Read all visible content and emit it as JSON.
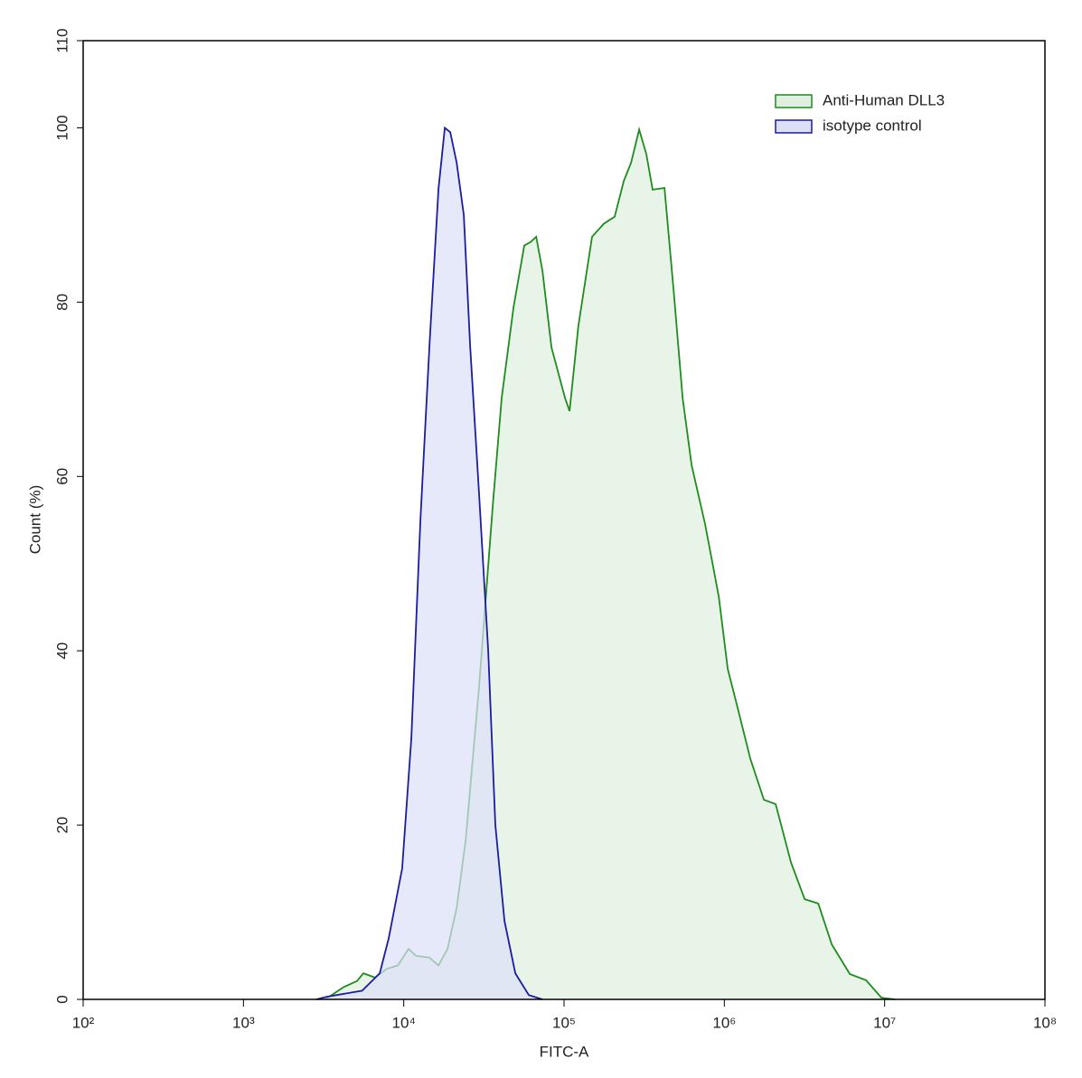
{
  "chart_data": {
    "type": "histogram-overlay",
    "xlabel": "FITC-A",
    "ylabel": "Count  (%)",
    "xscale": "log",
    "xlim": [
      100,
      100000000
    ],
    "ylim": [
      0,
      110
    ],
    "xticks": [
      {
        "value": 100,
        "label": "10²"
      },
      {
        "value": 1000,
        "label": "10³"
      },
      {
        "value": 10000,
        "label": "10⁴"
      },
      {
        "value": 100000,
        "label": "10⁵"
      },
      {
        "value": 1000000,
        "label": "10⁶"
      },
      {
        "value": 10000000,
        "label": "10⁷"
      },
      {
        "value": 100000000,
        "label": "10⁸"
      }
    ],
    "yticks": [
      0,
      20,
      40,
      60,
      80,
      100,
      110
    ],
    "legend": "upper right",
    "series": [
      {
        "name": "Anti-Human DLL3",
        "color": "#1e8c1e",
        "fill": "#dff0df",
        "x": [
          3240,
          4200,
          5110,
          5600,
          6610,
          7850,
          9180,
          10720,
          11900,
          14460,
          16480,
          18750,
          21380,
          24330,
          29520,
          35900,
          40800,
          48400,
          56500,
          61900,
          67000,
          73300,
          83500,
          101400,
          108200,
          123000,
          149600,
          177000,
          207000,
          236000,
          262000,
          294000,
          326000,
          357000,
          423000,
          482000,
          549000,
          625000,
          759000,
          923000,
          1050000,
          1197000,
          1452000,
          1766000,
          2090000,
          2606000,
          3170000,
          3850000,
          4680000,
          6070000,
          7660000,
          9550000,
          11600000
        ],
        "values": [
          0,
          1.4,
          2.1,
          3.0,
          2.5,
          3.5,
          3.9,
          5.8,
          5.0,
          4.8,
          3.9,
          5.8,
          10.5,
          18.2,
          35.9,
          56.6,
          69,
          79.4,
          86.5,
          86.9,
          87.5,
          83.6,
          74.8,
          69,
          67.5,
          77.3,
          87.5,
          89,
          89.8,
          93.9,
          96,
          99.8,
          97,
          92.9,
          93.1,
          81.5,
          69,
          61.3,
          54.5,
          46.2,
          37.9,
          33.8,
          27.6,
          22.9,
          22.4,
          15.7,
          11.5,
          11,
          6.3,
          2.9,
          2.2,
          0.2,
          0
        ]
      },
      {
        "name": "isotype control",
        "color": "#1c1ca0",
        "fill": "#dcdff8",
        "x": [
          2850,
          3300,
          5500,
          7080,
          8050,
          9770,
          11150,
          12700,
          14460,
          16480,
          18030,
          19500,
          21380,
          23700,
          25950,
          29520,
          33630,
          37300,
          42480,
          49650,
          60300,
          73300
        ],
        "values": [
          0,
          0.3,
          1,
          3,
          7,
          15,
          30,
          55,
          75,
          93,
          100,
          99.5,
          96,
          90,
          75,
          58,
          40,
          20,
          9,
          3,
          0.5,
          0
        ]
      }
    ]
  }
}
